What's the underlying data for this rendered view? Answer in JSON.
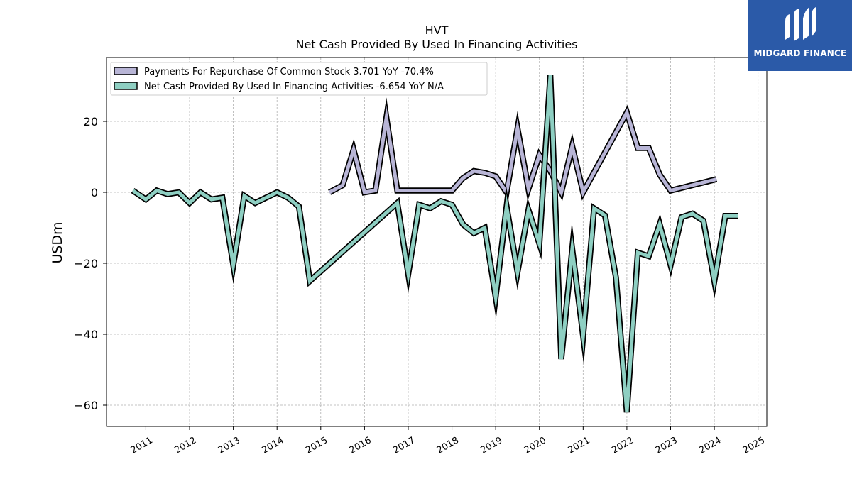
{
  "chart_data": {
    "type": "line",
    "title": "HVT",
    "subtitle": "Net Cash Provided By Used In Financing Activities",
    "ylabel": "USDm",
    "xlabel": "",
    "ylim": [
      -66,
      38
    ],
    "xlim": [
      2010.1,
      2025.2
    ],
    "grid": true,
    "legend_position": "top-left",
    "x_ticks": [
      2011,
      2012,
      2013,
      2014,
      2015,
      2016,
      2017,
      2018,
      2019,
      2020,
      2021,
      2022,
      2023,
      2024,
      2025
    ],
    "x_tick_labels": [
      "2011",
      "2012",
      "2013",
      "2014",
      "2015",
      "2016",
      "2017",
      "2018",
      "2019",
      "2020",
      "2021",
      "2022",
      "2023",
      "2024",
      "2025"
    ],
    "y_ticks": [
      20,
      0,
      -20,
      -40,
      -60
    ],
    "y_tick_labels": [
      "20",
      "0",
      "−20",
      "−40",
      "−60"
    ],
    "series": [
      {
        "name": "Payments For Repurchase Of Common Stock",
        "legend_label": "Payments For Repurchase Of Common Stock  3.701 YoY -70.4%",
        "color": "#b8b5d6",
        "points": [
          [
            2015.2,
            0
          ],
          [
            2015.5,
            2
          ],
          [
            2015.75,
            12
          ],
          [
            2016.0,
            0
          ],
          [
            2016.25,
            0.5
          ],
          [
            2016.5,
            21
          ],
          [
            2016.75,
            0.5
          ],
          [
            2017.0,
            0.5
          ],
          [
            2017.25,
            0.5
          ],
          [
            2017.5,
            0.5
          ],
          [
            2017.75,
            0.5
          ],
          [
            2018.0,
            0.5
          ],
          [
            2018.25,
            4
          ],
          [
            2018.5,
            6
          ],
          [
            2018.75,
            5.5
          ],
          [
            2019.0,
            4.5
          ],
          [
            2019.25,
            0
          ],
          [
            2019.5,
            18
          ],
          [
            2019.75,
            1
          ],
          [
            2020.0,
            10.5
          ],
          [
            2020.25,
            6
          ],
          [
            2020.5,
            0
          ],
          [
            2020.75,
            13
          ],
          [
            2021.0,
            0
          ],
          [
            2022.0,
            22.5
          ],
          [
            2022.25,
            12.5
          ],
          [
            2022.5,
            12.5
          ],
          [
            2022.75,
            5
          ],
          [
            2023.0,
            0.5
          ],
          [
            2024.05,
            3.7
          ]
        ]
      },
      {
        "name": "Net Cash Provided By Used In Financing Activities",
        "legend_label": "Net Cash Provided By Used In Financing Activities  -6.654 YoY N/A",
        "color": "#8ecfc2",
        "points": [
          [
            2010.7,
            0.5
          ],
          [
            2011.0,
            -2
          ],
          [
            2011.25,
            0.5
          ],
          [
            2011.5,
            -0.5
          ],
          [
            2011.75,
            0
          ],
          [
            2012.0,
            -3
          ],
          [
            2012.25,
            0
          ],
          [
            2012.5,
            -2
          ],
          [
            2012.75,
            -1.5
          ],
          [
            2013.0,
            -20.5
          ],
          [
            2013.25,
            -1
          ],
          [
            2013.5,
            -3
          ],
          [
            2014.0,
            0
          ],
          [
            2014.25,
            -1.5
          ],
          [
            2014.5,
            -4
          ],
          [
            2014.75,
            -25
          ],
          [
            2016.75,
            -3
          ],
          [
            2017.0,
            -23
          ],
          [
            2017.25,
            -3.5
          ],
          [
            2017.5,
            -4.5
          ],
          [
            2017.75,
            -2.5
          ],
          [
            2018.0,
            -3.5
          ],
          [
            2018.25,
            -9
          ],
          [
            2018.5,
            -11.5
          ],
          [
            2018.75,
            -10
          ],
          [
            2019.0,
            -29.5
          ],
          [
            2019.25,
            -4
          ],
          [
            2019.5,
            -22.5
          ],
          [
            2019.75,
            -5
          ],
          [
            2020.0,
            -14.5
          ],
          [
            2020.25,
            33
          ],
          [
            2020.5,
            -47
          ],
          [
            2020.75,
            -16
          ],
          [
            2021.0,
            -40.5
          ],
          [
            2021.25,
            -4.5
          ],
          [
            2021.5,
            -6.5
          ],
          [
            2021.75,
            -24
          ],
          [
            2022.0,
            -62
          ],
          [
            2022.25,
            -17
          ],
          [
            2022.5,
            -18
          ],
          [
            2022.75,
            -9
          ],
          [
            2023.0,
            -20.5
          ],
          [
            2023.25,
            -7
          ],
          [
            2023.5,
            -6
          ],
          [
            2023.75,
            -8
          ],
          [
            2024.0,
            -25
          ],
          [
            2024.25,
            -6.654
          ],
          [
            2024.55,
            -6.654
          ]
        ]
      }
    ]
  },
  "logo": {
    "text": "MIDGARD FINANCE"
  }
}
